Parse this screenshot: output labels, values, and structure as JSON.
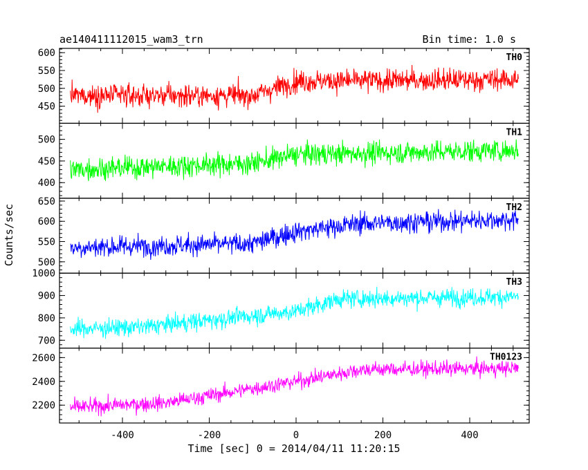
{
  "header": {
    "title": "ae140411112015_wam3_trn",
    "bin_time": "Bin time: 1.0 s"
  },
  "chart_data": {
    "type": "line",
    "xlabel": "Time [sec] 0 = 2014/04/11 11:20:15",
    "ylabel": "Counts/sec",
    "xlim": [
      -545,
      537
    ],
    "x_ticks": [
      -400,
      -200,
      0,
      200,
      400
    ],
    "x_range": [
      -520,
      512
    ],
    "step": 1.0,
    "panels": [
      {
        "name": "TH0",
        "color": "#ff0000",
        "ylim": [
          402,
          612
        ],
        "yticks": [
          450,
          500,
          550,
          600
        ],
        "trend": [
          [
            -520,
            480
          ],
          [
            -100,
            480
          ],
          [
            0,
            520
          ],
          [
            512,
            525
          ]
        ],
        "noise": 22
      },
      {
        "name": "TH1",
        "color": "#00ff00",
        "ylim": [
          364,
          537
        ],
        "yticks": [
          400,
          450,
          500
        ],
        "trend": [
          [
            -520,
            430
          ],
          [
            -100,
            445
          ],
          [
            0,
            465
          ],
          [
            512,
            475
          ]
        ],
        "noise": 18
      },
      {
        "name": "TH2",
        "color": "#0000ff",
        "ylim": [
          472,
          657
        ],
        "yticks": [
          500,
          550,
          600,
          650
        ],
        "trend": [
          [
            -520,
            535
          ],
          [
            -100,
            545
          ],
          [
            0,
            575
          ],
          [
            150,
            595
          ],
          [
            512,
            605
          ]
        ],
        "noise": 18
      },
      {
        "name": "TH3",
        "color": "#00ffff",
        "ylim": [
          665,
          1000
        ],
        "yticks": [
          700,
          800,
          900,
          1000
        ],
        "trend": [
          [
            -520,
            750
          ],
          [
            -350,
            760
          ],
          [
            0,
            830
          ],
          [
            100,
            885
          ],
          [
            512,
            895
          ]
        ],
        "noise": 28
      },
      {
        "name": "TH0123",
        "color": "#ff00ff",
        "ylim": [
          2050,
          2680
        ],
        "yticks": [
          2200,
          2400,
          2600
        ],
        "trend": [
          [
            -520,
            2180
          ],
          [
            -300,
            2220
          ],
          [
            0,
            2400
          ],
          [
            150,
            2500
          ],
          [
            512,
            2510
          ]
        ],
        "noise": 45
      }
    ]
  }
}
